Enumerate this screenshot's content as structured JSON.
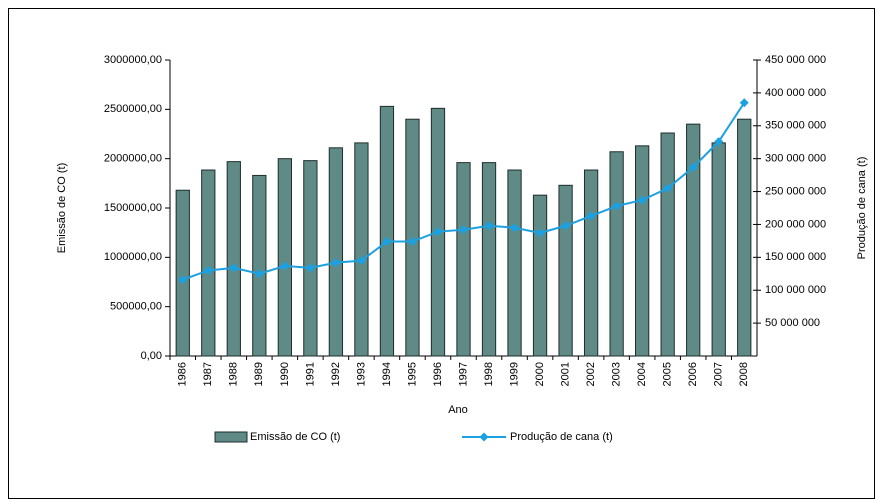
{
  "chart_data": {
    "type": "bar",
    "x_label": "Ano",
    "y_label": "Emissão de CO (t)",
    "y2_label": "Produção de cana (t)",
    "categories": [
      "1986",
      "1987",
      "1988",
      "1989",
      "1990",
      "1991",
      "1992",
      "1993",
      "1994",
      "1995",
      "1996",
      "1997",
      "1998",
      "1999",
      "2000",
      "2001",
      "2002",
      "2003",
      "2004",
      "2005",
      "2006",
      "2007",
      "2008"
    ],
    "series": [
      {
        "name": "Emissão de CO (t)",
        "type": "bar",
        "color": "#5f8a86",
        "values": [
          1680000,
          1885000,
          1970000,
          1830000,
          2000000,
          1980000,
          2110000,
          2160000,
          2530000,
          2400000,
          2510000,
          1960000,
          1960000,
          1885000,
          1630000,
          1730000,
          1885000,
          2070000,
          2130000,
          2260000,
          2350000,
          2160000,
          2400000
        ]
      },
      {
        "name": "Produção de cana (t)",
        "type": "line",
        "axis": "y2",
        "color": "#1ba1e2",
        "values": [
          116000000,
          130000000,
          134000000,
          125000000,
          137000000,
          134000000,
          142000000,
          145000000,
          174000000,
          174000000,
          189000000,
          192000000,
          198000000,
          195000000,
          187000000,
          198000000,
          213000000,
          228000000,
          237000000,
          255000000,
          287000000,
          326000000,
          385000000
        ]
      }
    ],
    "ylim": [
      0,
      3000000
    ],
    "yticks": [
      {
        "value": 0,
        "label": "0,00"
      },
      {
        "value": 500000,
        "label": "500000,00"
      },
      {
        "value": 1000000,
        "label": "1000000,00"
      },
      {
        "value": 1500000,
        "label": "1500000,00"
      },
      {
        "value": 2000000,
        "label": "2000000,00"
      },
      {
        "value": 2500000,
        "label": "2500000,00"
      },
      {
        "value": 3000000,
        "label": "3000000,00"
      }
    ],
    "y2lim": [
      0,
      450000000
    ],
    "y2ticks": [
      {
        "value": 50000000,
        "label": "50 000 000"
      },
      {
        "value": 100000000,
        "label": "100 000 000"
      },
      {
        "value": 150000000,
        "label": "150 000 000"
      },
      {
        "value": 200000000,
        "label": "200 000 000"
      },
      {
        "value": 250000000,
        "label": "250 000 000"
      },
      {
        "value": 300000000,
        "label": "300 000 000"
      },
      {
        "value": 350000000,
        "label": "350 000 000"
      },
      {
        "value": 400000000,
        "label": "400 000 000"
      },
      {
        "value": 450000000,
        "label": "450 000 000"
      }
    ]
  }
}
